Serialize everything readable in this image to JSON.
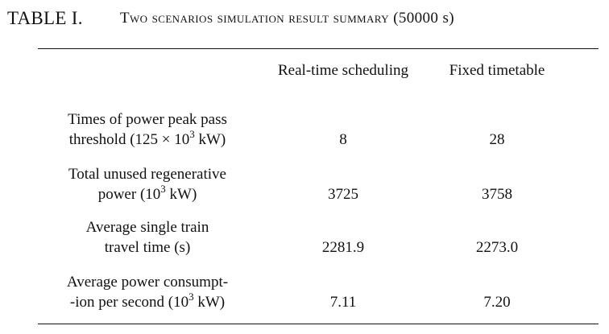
{
  "caption": {
    "label": "TABLE I.",
    "title": "Two scenarios simulation result summary (",
    "title_unit": "50000 s",
    "title_close": ")"
  },
  "table": {
    "columns": [
      "",
      "Real-time scheduling",
      "Fixed timetable"
    ],
    "rows": [
      {
        "metric_line1": "Times of power peak pass",
        "metric_line2_pre": "threshold (125 × 10",
        "metric_line2_sup": "3",
        "metric_line2_post": " kW)",
        "real_time": "8",
        "fixed": "28"
      },
      {
        "metric_line1": "Total unused regenerative",
        "metric_line2_pre": "power (10",
        "metric_line2_sup": "3",
        "metric_line2_post": " kW)",
        "real_time": "3725",
        "fixed": "3758"
      },
      {
        "metric_line1": "Average single train",
        "metric_line2_pre": "travel time (s)",
        "metric_line2_sup": "",
        "metric_line2_post": "",
        "real_time": "2281.9",
        "fixed": "2273.0"
      },
      {
        "metric_line1": "Average power consumpt-",
        "metric_line2_pre": "-ion per second (10",
        "metric_line2_sup": "3",
        "metric_line2_post": " kW)",
        "real_time": "7.11",
        "fixed": "7.20"
      }
    ]
  }
}
